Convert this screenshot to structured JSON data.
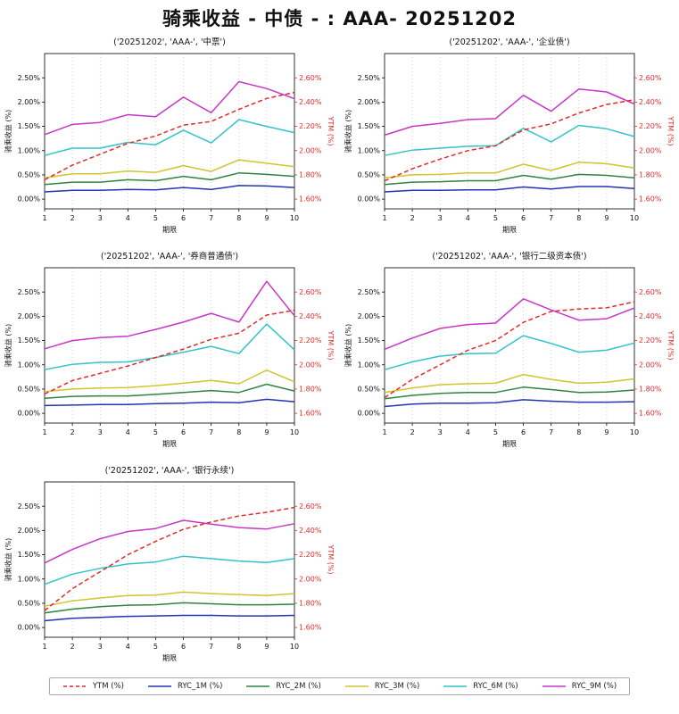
{
  "page_title": "骑乘收益 - 中债 - : AAA- 20251202",
  "axes": {
    "x_label": "期限",
    "y_left_label": "骑乘收益 (%)",
    "y_right_label": "YTM (%)",
    "left_ticks": [
      "0.00%",
      "0.50%",
      "1.00%",
      "1.50%",
      "2.00%",
      "2.50%"
    ],
    "right_ticks": [
      "1.60%",
      "1.80%",
      "2.00%",
      "2.20%",
      "2.40%",
      "2.60%"
    ],
    "left_range": [
      -0.2,
      3.0
    ],
    "right_range": [
      1.52,
      2.8
    ],
    "x_ticks": [
      1,
      2,
      3,
      4,
      5,
      6,
      7,
      8,
      9,
      10
    ],
    "grid_color": "#c0c0c0",
    "right_axis_color": "#e02b2b"
  },
  "legend": {
    "items": [
      {
        "label": "YTM (%)",
        "color": "#e02b2b",
        "dashed": true
      },
      {
        "label": "RYC_1M (%)",
        "color": "#2433b0",
        "dashed": false
      },
      {
        "label": "RYC_2M (%)",
        "color": "#2e8540",
        "dashed": false
      },
      {
        "label": "RYC_3M (%)",
        "color": "#cfc52e",
        "dashed": false
      },
      {
        "label": "RYC_6M (%)",
        "color": "#33c2c9",
        "dashed": false
      },
      {
        "label": "RYC_9M (%)",
        "color": "#c736c7",
        "dashed": false
      }
    ]
  },
  "chart_data": [
    {
      "type": "line",
      "title": "('20251202', 'AAA-', '中票')",
      "x": [
        1,
        2,
        3,
        4,
        5,
        6,
        7,
        8,
        9,
        10
      ],
      "series": [
        {
          "name": "RYC_1M (%)",
          "axis": "left",
          "dashed": false,
          "color": "#2433b0",
          "values": [
            0.15,
            0.18,
            0.18,
            0.2,
            0.19,
            0.24,
            0.2,
            0.28,
            0.27,
            0.24
          ]
        },
        {
          "name": "RYC_2M (%)",
          "axis": "left",
          "dashed": false,
          "color": "#2e8540",
          "values": [
            0.3,
            0.35,
            0.35,
            0.4,
            0.38,
            0.47,
            0.4,
            0.54,
            0.51,
            0.47
          ]
        },
        {
          "name": "RYC_3M (%)",
          "axis": "left",
          "dashed": false,
          "color": "#cfc52e",
          "values": [
            0.44,
            0.52,
            0.52,
            0.58,
            0.55,
            0.69,
            0.57,
            0.81,
            0.74,
            0.67
          ]
        },
        {
          "name": "RYC_6M (%)",
          "axis": "left",
          "dashed": false,
          "color": "#33c2c9",
          "values": [
            0.9,
            1.05,
            1.05,
            1.17,
            1.12,
            1.42,
            1.16,
            1.64,
            1.5,
            1.37
          ]
        },
        {
          "name": "RYC_9M (%)",
          "axis": "left",
          "dashed": false,
          "color": "#c736c7",
          "values": [
            1.33,
            1.54,
            1.58,
            1.74,
            1.7,
            2.1,
            1.78,
            2.42,
            2.28,
            2.07
          ]
        },
        {
          "name": "YTM (%)",
          "axis": "right",
          "dashed": true,
          "color": "#e02b2b",
          "values": [
            1.76,
            1.88,
            1.97,
            2.06,
            2.12,
            2.21,
            2.24,
            2.34,
            2.43,
            2.48
          ]
        }
      ]
    },
    {
      "type": "line",
      "title": "('20251202', 'AAA-', '企业债')",
      "x": [
        1,
        2,
        3,
        4,
        5,
        6,
        7,
        8,
        9,
        10
      ],
      "series": [
        {
          "name": "RYC_1M (%)",
          "axis": "left",
          "dashed": false,
          "color": "#2433b0",
          "values": [
            0.15,
            0.18,
            0.18,
            0.19,
            0.19,
            0.25,
            0.21,
            0.26,
            0.26,
            0.22
          ]
        },
        {
          "name": "RYC_2M (%)",
          "axis": "left",
          "dashed": false,
          "color": "#2e8540",
          "values": [
            0.3,
            0.35,
            0.36,
            0.38,
            0.38,
            0.49,
            0.41,
            0.51,
            0.49,
            0.44
          ]
        },
        {
          "name": "RYC_3M (%)",
          "axis": "left",
          "dashed": false,
          "color": "#cfc52e",
          "values": [
            0.44,
            0.5,
            0.51,
            0.54,
            0.54,
            0.72,
            0.59,
            0.76,
            0.73,
            0.64
          ]
        },
        {
          "name": "RYC_6M (%)",
          "axis": "left",
          "dashed": false,
          "color": "#33c2c9",
          "values": [
            0.9,
            1.01,
            1.05,
            1.09,
            1.1,
            1.46,
            1.18,
            1.52,
            1.45,
            1.29
          ]
        },
        {
          "name": "RYC_9M (%)",
          "axis": "left",
          "dashed": false,
          "color": "#c736c7",
          "values": [
            1.32,
            1.5,
            1.56,
            1.64,
            1.66,
            2.14,
            1.81,
            2.27,
            2.21,
            1.96
          ]
        },
        {
          "name": "YTM (%)",
          "axis": "right",
          "dashed": true,
          "color": "#e02b2b",
          "values": [
            1.75,
            1.85,
            1.93,
            2.0,
            2.04,
            2.17,
            2.22,
            2.31,
            2.38,
            2.42
          ]
        }
      ]
    },
    {
      "type": "line",
      "title": "('20251202', 'AAA-', '券商普通债')",
      "x": [
        1,
        2,
        3,
        4,
        5,
        6,
        7,
        8,
        9,
        10
      ],
      "series": [
        {
          "name": "RYC_1M (%)",
          "axis": "left",
          "dashed": false,
          "color": "#2433b0",
          "values": [
            0.16,
            0.17,
            0.18,
            0.18,
            0.2,
            0.21,
            0.23,
            0.22,
            0.29,
            0.24
          ]
        },
        {
          "name": "RYC_2M (%)",
          "axis": "left",
          "dashed": false,
          "color": "#2e8540",
          "values": [
            0.31,
            0.35,
            0.36,
            0.36,
            0.39,
            0.43,
            0.47,
            0.43,
            0.6,
            0.46
          ]
        },
        {
          "name": "RYC_3M (%)",
          "axis": "left",
          "dashed": false,
          "color": "#cfc52e",
          "values": [
            0.45,
            0.5,
            0.52,
            0.53,
            0.57,
            0.62,
            0.68,
            0.61,
            0.89,
            0.65
          ]
        },
        {
          "name": "RYC_6M (%)",
          "axis": "left",
          "dashed": false,
          "color": "#33c2c9",
          "values": [
            0.9,
            1.01,
            1.05,
            1.06,
            1.15,
            1.26,
            1.38,
            1.23,
            1.84,
            1.31
          ]
        },
        {
          "name": "RYC_9M (%)",
          "axis": "left",
          "dashed": false,
          "color": "#c736c7",
          "values": [
            1.33,
            1.5,
            1.56,
            1.59,
            1.73,
            1.88,
            2.06,
            1.88,
            2.72,
            2.01
          ]
        },
        {
          "name": "YTM (%)",
          "axis": "right",
          "dashed": true,
          "color": "#e02b2b",
          "values": [
            1.76,
            1.87,
            1.93,
            1.99,
            2.06,
            2.13,
            2.21,
            2.26,
            2.41,
            2.45
          ]
        }
      ]
    },
    {
      "type": "line",
      "title": "('20251202', 'AAA-', '银行二级资本债')",
      "x": [
        1,
        2,
        3,
        4,
        5,
        6,
        7,
        8,
        9,
        10
      ],
      "series": [
        {
          "name": "RYC_1M (%)",
          "axis": "left",
          "dashed": false,
          "color": "#2433b0",
          "values": [
            0.14,
            0.19,
            0.21,
            0.21,
            0.22,
            0.28,
            0.25,
            0.23,
            0.23,
            0.24
          ]
        },
        {
          "name": "RYC_2M (%)",
          "axis": "left",
          "dashed": false,
          "color": "#2e8540",
          "values": [
            0.3,
            0.37,
            0.41,
            0.43,
            0.43,
            0.54,
            0.49,
            0.43,
            0.44,
            0.48
          ]
        },
        {
          "name": "RYC_3M (%)",
          "axis": "left",
          "dashed": false,
          "color": "#cfc52e",
          "values": [
            0.43,
            0.52,
            0.59,
            0.61,
            0.62,
            0.8,
            0.7,
            0.62,
            0.64,
            0.71
          ]
        },
        {
          "name": "RYC_6M (%)",
          "axis": "left",
          "dashed": false,
          "color": "#33c2c9",
          "values": [
            0.9,
            1.06,
            1.18,
            1.23,
            1.24,
            1.6,
            1.44,
            1.26,
            1.3,
            1.45
          ]
        },
        {
          "name": "RYC_9M (%)",
          "axis": "left",
          "dashed": false,
          "color": "#c736c7",
          "values": [
            1.32,
            1.55,
            1.75,
            1.83,
            1.86,
            2.36,
            2.13,
            1.92,
            1.95,
            2.17
          ]
        },
        {
          "name": "YTM (%)",
          "axis": "right",
          "dashed": true,
          "color": "#e02b2b",
          "values": [
            1.73,
            1.88,
            2.0,
            2.12,
            2.2,
            2.35,
            2.44,
            2.46,
            2.47,
            2.52
          ]
        }
      ]
    },
    {
      "type": "line",
      "title": "('20251202', 'AAA-', '银行永续')",
      "x": [
        1,
        2,
        3,
        4,
        5,
        6,
        7,
        8,
        9,
        10
      ],
      "series": [
        {
          "name": "RYC_1M (%)",
          "axis": "left",
          "dashed": false,
          "color": "#2433b0",
          "values": [
            0.14,
            0.19,
            0.21,
            0.23,
            0.24,
            0.25,
            0.25,
            0.24,
            0.24,
            0.25
          ]
        },
        {
          "name": "RYC_2M (%)",
          "axis": "left",
          "dashed": false,
          "color": "#2e8540",
          "values": [
            0.3,
            0.38,
            0.43,
            0.46,
            0.47,
            0.51,
            0.49,
            0.47,
            0.47,
            0.48
          ]
        },
        {
          "name": "RYC_3M (%)",
          "axis": "left",
          "dashed": false,
          "color": "#cfc52e",
          "values": [
            0.44,
            0.55,
            0.61,
            0.66,
            0.67,
            0.73,
            0.7,
            0.68,
            0.66,
            0.7
          ]
        },
        {
          "name": "RYC_6M (%)",
          "axis": "left",
          "dashed": false,
          "color": "#33c2c9",
          "values": [
            0.89,
            1.1,
            1.22,
            1.31,
            1.35,
            1.47,
            1.42,
            1.37,
            1.34,
            1.42
          ]
        },
        {
          "name": "RYC_9M (%)",
          "axis": "left",
          "dashed": false,
          "color": "#c736c7",
          "values": [
            1.33,
            1.61,
            1.83,
            1.98,
            2.04,
            2.21,
            2.13,
            2.06,
            2.03,
            2.14
          ]
        },
        {
          "name": "YTM (%)",
          "axis": "right",
          "dashed": true,
          "color": "#e02b2b",
          "values": [
            1.74,
            1.92,
            2.06,
            2.2,
            2.31,
            2.41,
            2.47,
            2.52,
            2.55,
            2.59
          ]
        }
      ]
    }
  ]
}
